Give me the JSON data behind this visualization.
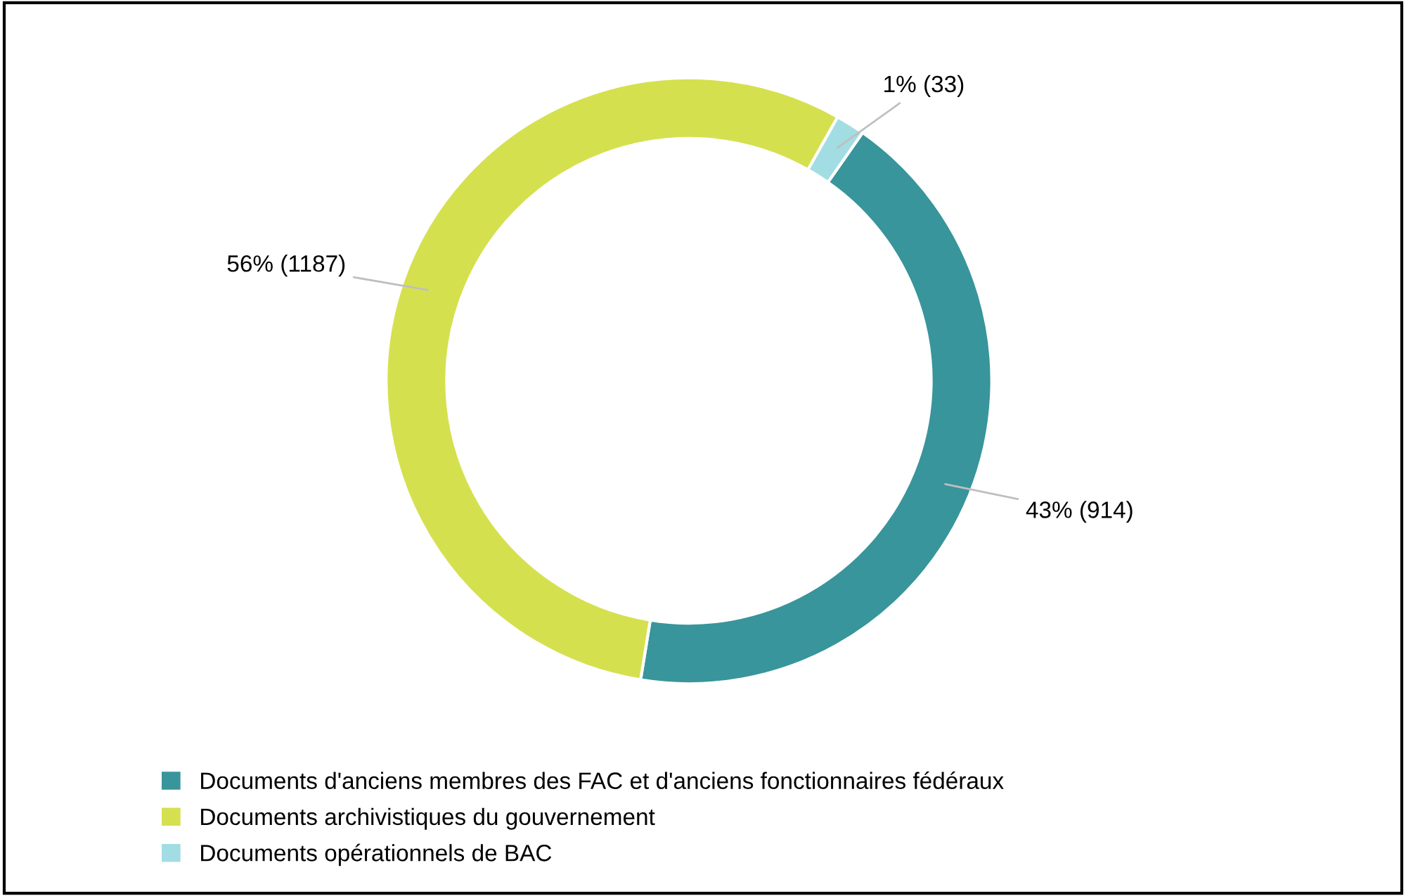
{
  "chart_data": {
    "type": "donut",
    "categories": [
      "Documents d'anciens membres des FAC et d'anciens fonctionnaires fédéraux",
      "Documents archivistiques du gouvernement",
      "Documents opérationnels de BAC"
    ],
    "values": [
      914,
      1187,
      33
    ],
    "colors": [
      "#38959b",
      "#d5e04f",
      "#a2dde3"
    ],
    "value_labels": [
      "43% (914)",
      "56% (1187)",
      "1% (33)"
    ],
    "legend": "bottom"
  }
}
